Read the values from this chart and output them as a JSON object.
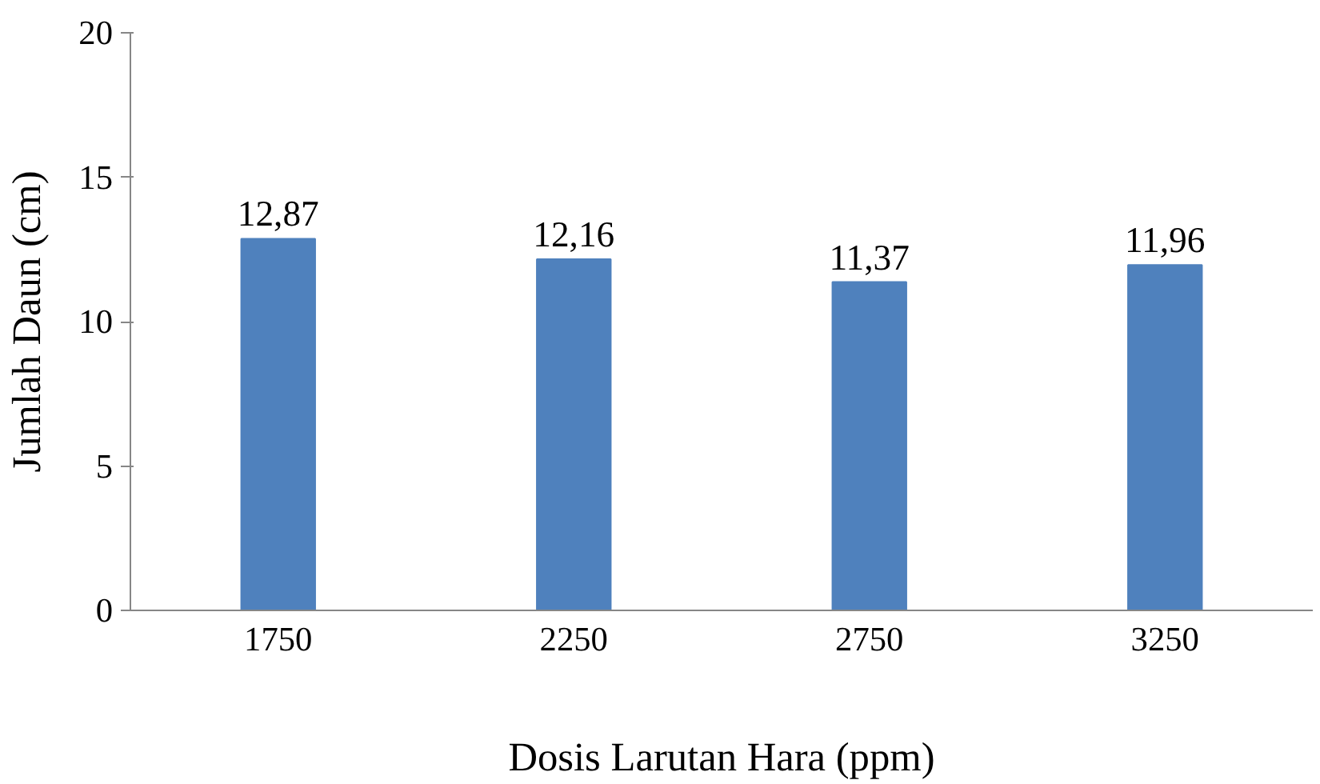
{
  "chart_data": {
    "type": "bar",
    "xlabel": "Dosis Larutan Hara (ppm)",
    "ylabel": "Jumlah Daun (cm)",
    "categories": [
      "1750",
      "2250",
      "2750",
      "3250"
    ],
    "values": [
      12.87,
      12.16,
      11.37,
      11.96
    ],
    "value_labels": [
      "12,87",
      "12,16",
      "11,37",
      "11,96"
    ],
    "color": "#4f81bd",
    "ylim": [
      0,
      20
    ],
    "yticks": [
      0,
      5,
      10,
      15,
      20
    ],
    "grid": false
  }
}
